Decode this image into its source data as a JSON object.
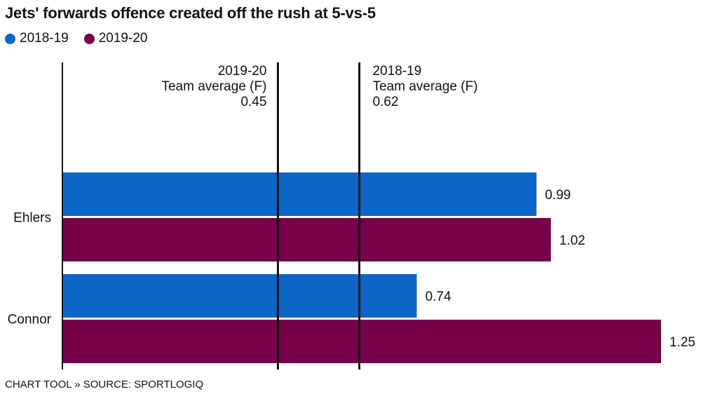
{
  "chart_data": {
    "type": "bar",
    "orientation": "horizontal",
    "title": "Jets' forwards offence created off the rush at 5-vs-5",
    "categories": [
      "Ehlers",
      "Connor"
    ],
    "series": [
      {
        "name": "2018-19",
        "color": "#0b66c8",
        "values": [
          0.99,
          0.74
        ]
      },
      {
        "name": "2019-20",
        "color": "#760049",
        "values": [
          1.02,
          1.25
        ]
      }
    ],
    "xlim": [
      0,
      1.25
    ],
    "grid": false,
    "legend_position": "top-left",
    "reference_lines": [
      {
        "value": 0.45,
        "label_lines": [
          "2019-20",
          "Team average (F)",
          "0.45"
        ],
        "label_side": "left"
      },
      {
        "value": 0.62,
        "label_lines": [
          "2018-19",
          "Team average (F)",
          "0.62"
        ],
        "label_side": "right"
      }
    ]
  },
  "footer": {
    "source": "CHART TOOL » SOURCE: SPORTLOGIQ"
  }
}
